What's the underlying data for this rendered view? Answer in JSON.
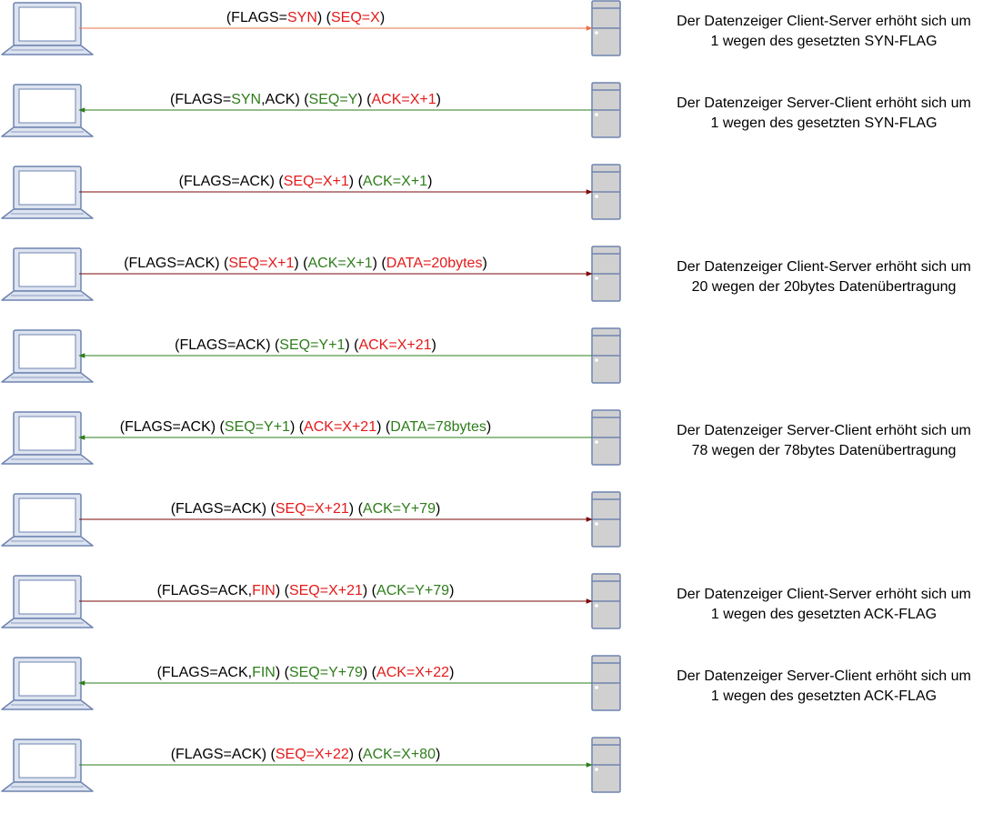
{
  "colors": {
    "black": "#000000",
    "red": "#e41a1a",
    "green": "#2e7d1b",
    "arrow_orange": "#e8744a",
    "arrow_green": "#2e7d1b",
    "arrow_darkred": "#7a0b0b",
    "laptop_fill": "#dde4f0",
    "laptop_stroke": "#6f84b0",
    "server_fill": "#d0d0d0",
    "server_stroke": "#6f84b0"
  },
  "icons": {
    "client": "laptop-icon",
    "server": "server-icon"
  },
  "messages": [
    {
      "direction": "to-server",
      "arrow_color": "orange",
      "segments": [
        {
          "text": "(FLAGS=",
          "color": "black"
        },
        {
          "text": "SYN",
          "color": "red"
        },
        {
          "text": ") (",
          "color": "black"
        },
        {
          "text": "SEQ=X",
          "color": "red"
        },
        {
          "text": ")",
          "color": "black"
        }
      ],
      "note": [
        "Der Datenzeiger Client-Server erhöht sich um",
        "1 wegen des gesetzten SYN-FLAG"
      ]
    },
    {
      "direction": "to-client",
      "arrow_color": "green",
      "segments": [
        {
          "text": "(FLAGS=",
          "color": "black"
        },
        {
          "text": "SYN",
          "color": "green"
        },
        {
          "text": ",ACK) (",
          "color": "black"
        },
        {
          "text": "SEQ=Y",
          "color": "green"
        },
        {
          "text": ") (",
          "color": "black"
        },
        {
          "text": "ACK=X+1",
          "color": "red"
        },
        {
          "text": ")",
          "color": "black"
        }
      ],
      "note": [
        "Der Datenzeiger Server-Client erhöht sich um",
        "1 wegen des gesetzten SYN-FLAG"
      ]
    },
    {
      "direction": "to-server",
      "arrow_color": "darkred",
      "segments": [
        {
          "text": "(FLAGS=ACK) (",
          "color": "black"
        },
        {
          "text": "SEQ=X+1",
          "color": "red"
        },
        {
          "text": ") (",
          "color": "black"
        },
        {
          "text": "ACK=X+1",
          "color": "green"
        },
        {
          "text": ")",
          "color": "black"
        }
      ],
      "note": []
    },
    {
      "direction": "to-server",
      "arrow_color": "darkred",
      "segments": [
        {
          "text": "(FLAGS=ACK) (",
          "color": "black"
        },
        {
          "text": "SEQ=X+1",
          "color": "red"
        },
        {
          "text": ") (",
          "color": "black"
        },
        {
          "text": "ACK=X+1",
          "color": "green"
        },
        {
          "text": ") (",
          "color": "black"
        },
        {
          "text": "DATA=20bytes",
          "color": "red"
        },
        {
          "text": ")",
          "color": "black"
        }
      ],
      "note": [
        "Der Datenzeiger Client-Server erhöht sich um",
        "20 wegen der 20bytes Datenübertragung"
      ]
    },
    {
      "direction": "to-client",
      "arrow_color": "green",
      "segments": [
        {
          "text": "(FLAGS=ACK) (",
          "color": "black"
        },
        {
          "text": "SEQ=Y+1",
          "color": "green"
        },
        {
          "text": ") (",
          "color": "black"
        },
        {
          "text": "ACK=X+21",
          "color": "red"
        },
        {
          "text": ")",
          "color": "black"
        }
      ],
      "note": []
    },
    {
      "direction": "to-client",
      "arrow_color": "green",
      "segments": [
        {
          "text": "(FLAGS=ACK) (",
          "color": "black"
        },
        {
          "text": "SEQ=Y+1",
          "color": "green"
        },
        {
          "text": ") (",
          "color": "black"
        },
        {
          "text": "ACK=X+21",
          "color": "red"
        },
        {
          "text": ") (",
          "color": "black"
        },
        {
          "text": "DATA=78bytes",
          "color": "green"
        },
        {
          "text": ")",
          "color": "black"
        }
      ],
      "note": [
        "Der Datenzeiger Server-Client erhöht sich um",
        "78 wegen der 78bytes Datenübertragung"
      ]
    },
    {
      "direction": "to-server",
      "arrow_color": "darkred",
      "segments": [
        {
          "text": "(FLAGS=ACK) (",
          "color": "black"
        },
        {
          "text": "SEQ=X+21",
          "color": "red"
        },
        {
          "text": ") (",
          "color": "black"
        },
        {
          "text": "ACK=Y+79",
          "color": "green"
        },
        {
          "text": ")",
          "color": "black"
        }
      ],
      "note": []
    },
    {
      "direction": "to-server",
      "arrow_color": "darkred",
      "segments": [
        {
          "text": "(FLAGS=ACK,",
          "color": "black"
        },
        {
          "text": "FIN",
          "color": "red"
        },
        {
          "text": ") (",
          "color": "black"
        },
        {
          "text": "SEQ=X+21",
          "color": "red"
        },
        {
          "text": ") (",
          "color": "black"
        },
        {
          "text": "ACK=Y+79",
          "color": "green"
        },
        {
          "text": ")",
          "color": "black"
        }
      ],
      "note": [
        "Der Datenzeiger Client-Server erhöht sich um",
        "1 wegen des gesetzten ACK-FLAG"
      ]
    },
    {
      "direction": "to-client",
      "arrow_color": "green",
      "segments": [
        {
          "text": "(FLAGS=ACK,",
          "color": "black"
        },
        {
          "text": "FIN",
          "color": "green"
        },
        {
          "text": ") (",
          "color": "black"
        },
        {
          "text": "SEQ=Y+79",
          "color": "green"
        },
        {
          "text": ") (",
          "color": "black"
        },
        {
          "text": "ACK=X+22",
          "color": "red"
        },
        {
          "text": ")",
          "color": "black"
        }
      ],
      "note": [
        "Der Datenzeiger Server-Client erhöht sich um",
        "1 wegen des gesetzten ACK-FLAG"
      ]
    },
    {
      "direction": "to-server",
      "arrow_color": "green",
      "segments": [
        {
          "text": "(FLAGS=ACK) (",
          "color": "black"
        },
        {
          "text": "SEQ=X+22",
          "color": "red"
        },
        {
          "text": ") (",
          "color": "black"
        },
        {
          "text": "ACK=X+80",
          "color": "green"
        },
        {
          "text": ")",
          "color": "black"
        }
      ],
      "note": []
    }
  ]
}
